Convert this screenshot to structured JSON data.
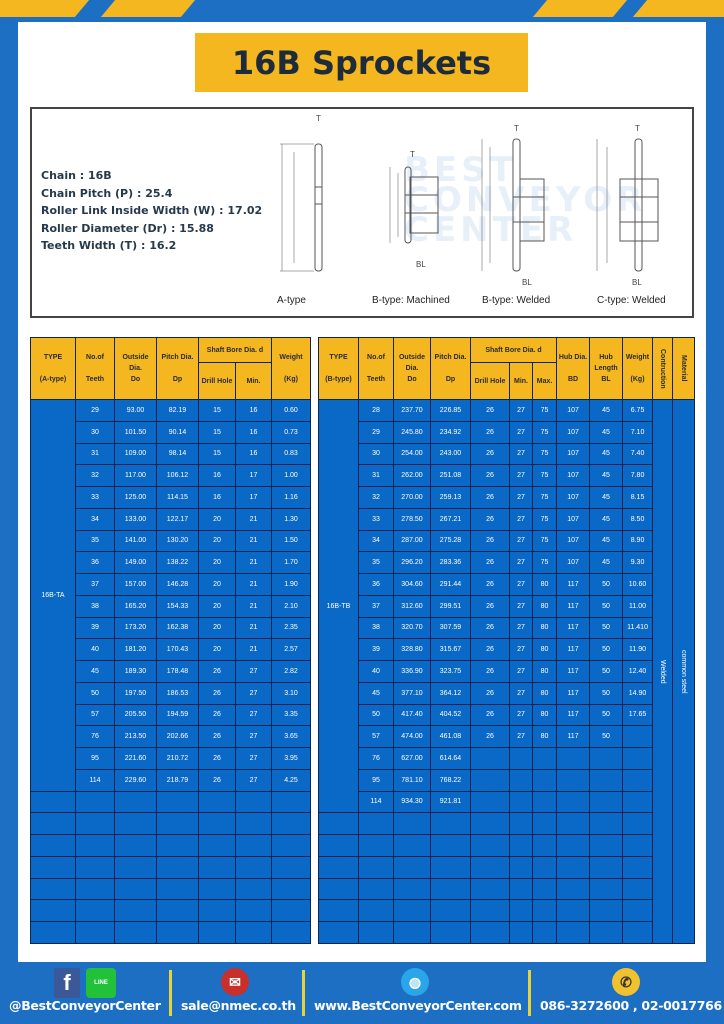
{
  "title": "16B Sprockets",
  "specs": [
    "Chain  :  16B",
    "Chain Pitch (P)  :  25.4",
    "Roller Link Inside Width (W)  :  17.02",
    "Roller Diameter (Dr)  : 15.88",
    "Teeth Width (T)  :  16.2"
  ],
  "watermark": "BEST CONVEYOR CENTER",
  "diagram_labels": [
    "A-type",
    "B-type: Machined",
    "B-type: Welded",
    "C-type: Welded"
  ],
  "dim_labels": {
    "T": "T",
    "Do": "Do",
    "Dp": "Dp",
    "d": "d",
    "BD": "BD",
    "BL": "BL"
  },
  "colors": {
    "page_blue": "#1c6fc3",
    "accent_yellow": "#f4b71f",
    "cell_blue": "#0a69c7",
    "grid": "#0b2653"
  },
  "table_a": {
    "headers": {
      "type": "TYPE",
      "type_sub": "(A-type)",
      "teeth": "No.of",
      "teeth_sub": "Teeth",
      "outside": "Outside",
      "outside_sub": "Dia.",
      "outside_sub2": "Do",
      "pitch": "Pitch Dia.",
      "pitch_sub": "Dp",
      "bore": "Shaft Bore Dia. d",
      "drill": "Drill Hole",
      "min": "Min.",
      "weight": "Weight",
      "weight_sub": "(Kg)"
    },
    "type_label": "16B-TA",
    "rows": [
      [
        "29",
        "93.00",
        "82.19",
        "15",
        "16",
        "0.60"
      ],
      [
        "30",
        "101.50",
        "90.14",
        "15",
        "16",
        "0.73"
      ],
      [
        "31",
        "109.00",
        "98.14",
        "15",
        "16",
        "0.83"
      ],
      [
        "32",
        "117.00",
        "106.12",
        "16",
        "17",
        "1.00"
      ],
      [
        "33",
        "125.00",
        "114.15",
        "16",
        "17",
        "1.16"
      ],
      [
        "34",
        "133.00",
        "122.17",
        "20",
        "21",
        "1.30"
      ],
      [
        "35",
        "141.00",
        "130.20",
        "20",
        "21",
        "1.50"
      ],
      [
        "36",
        "149.00",
        "138.22",
        "20",
        "21",
        "1.70"
      ],
      [
        "37",
        "157.00",
        "146.28",
        "20",
        "21",
        "1.90"
      ],
      [
        "38",
        "165.20",
        "154.33",
        "20",
        "21",
        "2.10"
      ],
      [
        "39",
        "173.20",
        "162.38",
        "20",
        "21",
        "2.35"
      ],
      [
        "40",
        "181.20",
        "170.43",
        "20",
        "21",
        "2.57"
      ],
      [
        "45",
        "189.30",
        "178.48",
        "26",
        "27",
        "2.82"
      ],
      [
        "50",
        "197.50",
        "186.53",
        "26",
        "27",
        "3.10"
      ],
      [
        "57",
        "205.50",
        "194.59",
        "26",
        "27",
        "3.35"
      ],
      [
        "76",
        "213.50",
        "202.66",
        "26",
        "27",
        "3.65"
      ],
      [
        "95",
        "221.60",
        "210.72",
        "26",
        "27",
        "3.95"
      ],
      [
        "114",
        "229.60",
        "218.79",
        "26",
        "27",
        "4.25"
      ]
    ]
  },
  "table_b": {
    "headers": {
      "type": "TYPE",
      "type_sub": "(B-type)",
      "teeth": "No.of",
      "teeth_sub": "Teeth",
      "outside": "Outside",
      "outside_sub": "Dia.",
      "outside_sub2": "Do",
      "pitch": "Pitch Dia.",
      "pitch_sub": "Dp",
      "bore": "Shaft Bore Dia. d",
      "drill": "Drill Hole",
      "min": "Min.",
      "max": "Max.",
      "hub": "Hub Dia.",
      "hub_sub": "BD",
      "hublen": "Hub",
      "hublen_sub": "Length",
      "hublen_sub2": "BL",
      "weight": "Weight",
      "weight_sub": "(Kg)",
      "construction": "Contruction",
      "material": "Material"
    },
    "type_label": "16B-TB",
    "construction_value": "Welded",
    "material_value": "common steel",
    "rows": [
      [
        "28",
        "237.70",
        "226.85",
        "26",
        "27",
        "75",
        "107",
        "45",
        "6.75"
      ],
      [
        "29",
        "245.80",
        "234.92",
        "26",
        "27",
        "75",
        "107",
        "45",
        "7.10"
      ],
      [
        "30",
        "254.00",
        "243.00",
        "26",
        "27",
        "75",
        "107",
        "45",
        "7.40"
      ],
      [
        "31",
        "262.00",
        "251.08",
        "26",
        "27",
        "75",
        "107",
        "45",
        "7.80"
      ],
      [
        "32",
        "270.00",
        "259.13",
        "26",
        "27",
        "75",
        "107",
        "45",
        "8.15"
      ],
      [
        "33",
        "278.50",
        "267.21",
        "26",
        "27",
        "75",
        "107",
        "45",
        "8.50"
      ],
      [
        "34",
        "287.00",
        "275.28",
        "26",
        "27",
        "75",
        "107",
        "45",
        "8.90"
      ],
      [
        "35",
        "296.20",
        "283.36",
        "26",
        "27",
        "75",
        "107",
        "45",
        "9.30"
      ],
      [
        "36",
        "304.60",
        "291.44",
        "26",
        "27",
        "80",
        "117",
        "50",
        "10.60"
      ],
      [
        "37",
        "312.60",
        "299.51",
        "26",
        "27",
        "80",
        "117",
        "50",
        "11.00"
      ],
      [
        "38",
        "320.70",
        "307.59",
        "26",
        "27",
        "80",
        "117",
        "50",
        "11.410"
      ],
      [
        "39",
        "328.80",
        "315.67",
        "26",
        "27",
        "80",
        "117",
        "50",
        "11.90"
      ],
      [
        "40",
        "336.90",
        "323.75",
        "26",
        "27",
        "80",
        "117",
        "50",
        "12.40"
      ],
      [
        "45",
        "377.10",
        "364.12",
        "26",
        "27",
        "80",
        "117",
        "50",
        "14.90"
      ],
      [
        "50",
        "417.40",
        "404.52",
        "26",
        "27",
        "80",
        "117",
        "50",
        "17.65"
      ],
      [
        "57",
        "474.00",
        "461.08",
        "26",
        "27",
        "80",
        "117",
        "50",
        ""
      ],
      [
        "76",
        "627.00",
        "614.64",
        "",
        "",
        "",
        "",
        "",
        ""
      ],
      [
        "95",
        "781.10",
        "768.22",
        "",
        "",
        "",
        "",
        "",
        ""
      ],
      [
        "114",
        "934.30",
        "921.81",
        "",
        "",
        "",
        "",
        "",
        ""
      ]
    ]
  },
  "footer": {
    "social": "@BestConveyorCenter",
    "line_icon_text": "LINE",
    "email": "sale@nmec.co.th",
    "website": "www.BestConveyorCenter.com",
    "phone": "086-3272600 , 02-0017766"
  }
}
